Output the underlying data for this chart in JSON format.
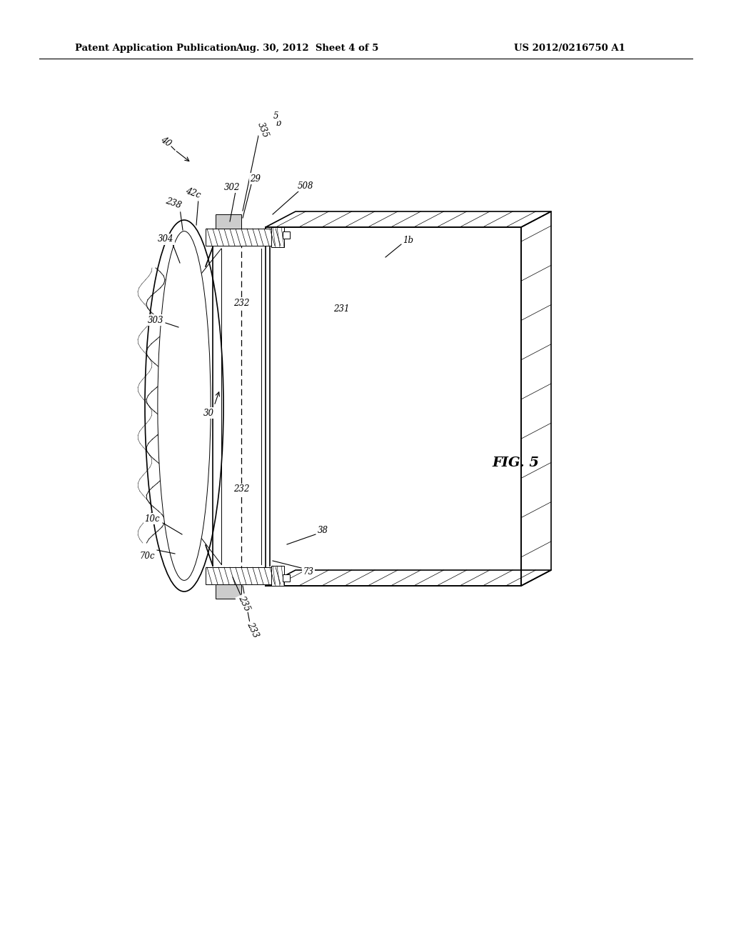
{
  "title_left": "Patent Application Publication",
  "title_mid": "Aug. 30, 2012  Sheet 4 of 5",
  "title_right": "US 2012/0216750 A1",
  "fig_label": "FIG. 5",
  "bg": "#ffffff",
  "lc": "#000000"
}
